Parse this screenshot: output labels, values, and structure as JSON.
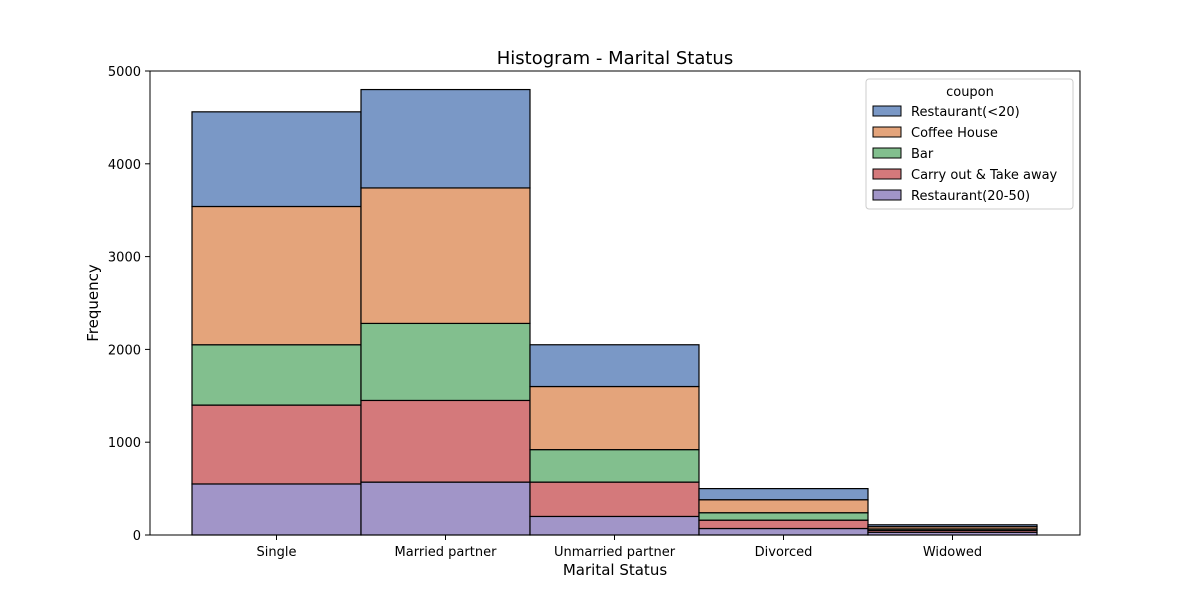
{
  "chart_data": {
    "type": "bar",
    "stacked": true,
    "title": "Histogram - Marital Status",
    "xlabel": "Marital Status",
    "ylabel": "Frequency",
    "categories": [
      "Single",
      "Married partner",
      "Unmarried partner",
      "Divorced",
      "Widowed"
    ],
    "ylim": [
      0,
      5000
    ],
    "yticks": [
      0,
      1000,
      2000,
      3000,
      4000,
      5000
    ],
    "grid": false,
    "legend": {
      "title": "coupon",
      "placement": "top-right"
    },
    "series": [
      {
        "name": "Restaurant(20-50)",
        "color": "#a195c8",
        "values": [
          550,
          570,
          200,
          70,
          30
        ]
      },
      {
        "name": "Carry out & Take away",
        "color": "#d4797b",
        "values": [
          850,
          880,
          370,
          90,
          20
        ]
      },
      {
        "name": "Bar",
        "color": "#82bf8e",
        "values": [
          650,
          830,
          350,
          80,
          15
        ]
      },
      {
        "name": "Coffee House",
        "color": "#e4a47b",
        "values": [
          1490,
          1460,
          680,
          140,
          25
        ]
      },
      {
        "name": "Restaurant(<20)",
        "color": "#7a98c6",
        "values": [
          1020,
          1060,
          450,
          120,
          20
        ]
      }
    ],
    "legend_order": [
      "Restaurant(<20)",
      "Coffee House",
      "Bar",
      "Carry out & Take away",
      "Restaurant(20-50)"
    ]
  }
}
